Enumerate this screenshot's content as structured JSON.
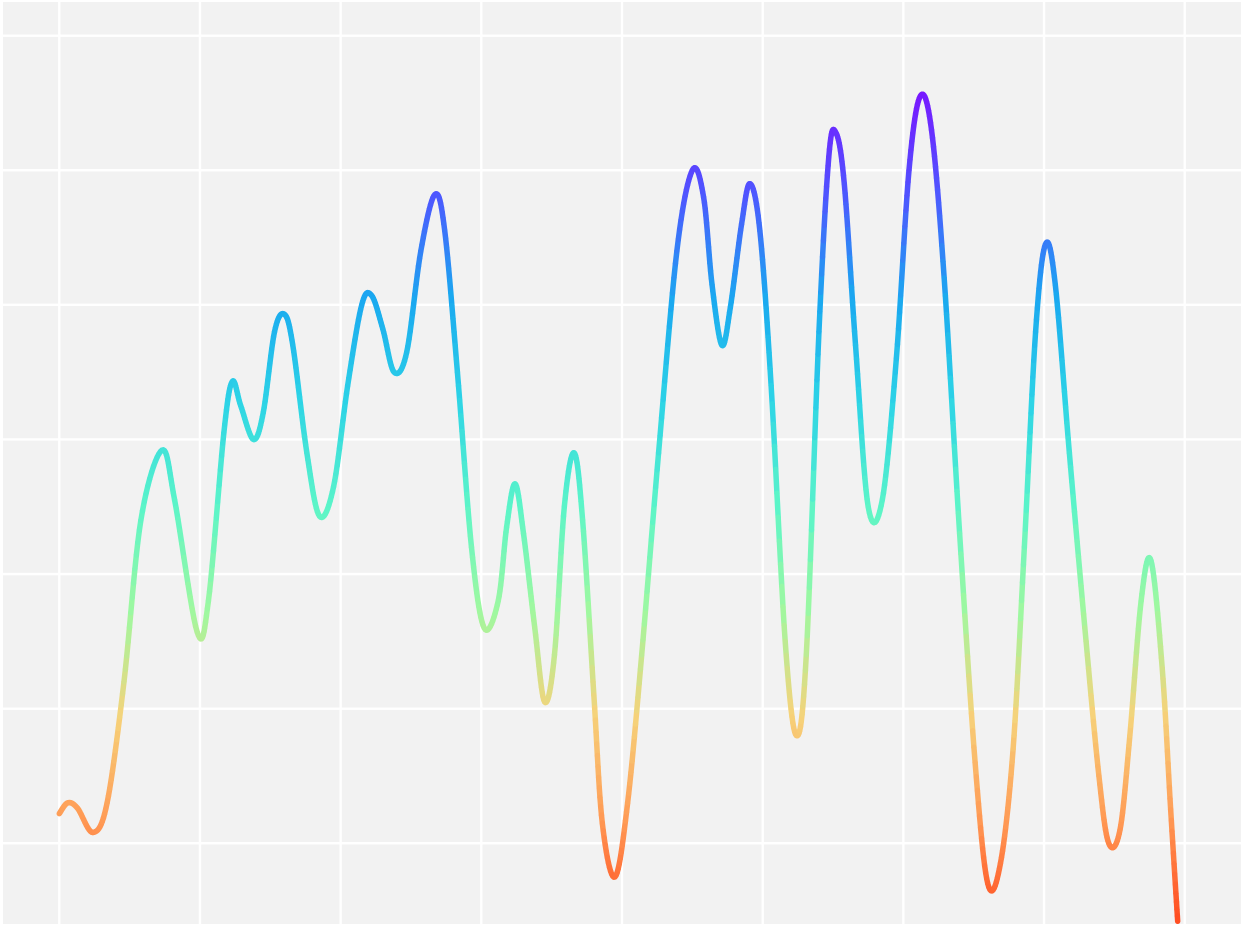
{
  "chart_data": {
    "type": "line",
    "title": "",
    "xlabel": "",
    "ylabel": "",
    "grid": true,
    "legend": "none",
    "background_color": "#f2f2f2",
    "grid_color": "#ffffff",
    "color_scale": [
      "#ff4a1f",
      "#ff9a55",
      "#f6d27a",
      "#9ff8a0",
      "#5cf5c8",
      "#2dd4e6",
      "#1aa8f0",
      "#4f55ff",
      "#7a15ff"
    ],
    "xlim": [
      -0.4,
      8.4
    ],
    "ylim": [
      -0.6,
      6.25
    ],
    "x_gridlines": [
      0,
      1,
      2,
      3,
      4,
      5,
      6,
      7,
      8
    ],
    "y_gridlines": [
      0,
      1,
      2,
      3,
      4,
      5,
      6
    ],
    "series": [
      {
        "points": [
          [
            0.0,
            0.22
          ],
          [
            0.06,
            0.3
          ],
          [
            0.13,
            0.26
          ],
          [
            0.24,
            0.08
          ],
          [
            0.34,
            0.3
          ],
          [
            0.46,
            1.2
          ],
          [
            0.58,
            2.4
          ],
          [
            0.73,
            2.92
          ],
          [
            0.82,
            2.55
          ],
          [
            0.98,
            1.57
          ],
          [
            1.06,
            1.8
          ],
          [
            1.17,
            3.05
          ],
          [
            1.23,
            3.43
          ],
          [
            1.29,
            3.25
          ],
          [
            1.38,
            3.0
          ],
          [
            1.45,
            3.2
          ],
          [
            1.53,
            3.8
          ],
          [
            1.6,
            3.93
          ],
          [
            1.66,
            3.7
          ],
          [
            1.76,
            2.9
          ],
          [
            1.85,
            2.43
          ],
          [
            1.95,
            2.65
          ],
          [
            2.05,
            3.4
          ],
          [
            2.15,
            4.0
          ],
          [
            2.22,
            4.07
          ],
          [
            2.3,
            3.82
          ],
          [
            2.38,
            3.5
          ],
          [
            2.47,
            3.65
          ],
          [
            2.57,
            4.4
          ],
          [
            2.67,
            4.82
          ],
          [
            2.74,
            4.55
          ],
          [
            2.83,
            3.5
          ],
          [
            2.93,
            2.2
          ],
          [
            3.02,
            1.6
          ],
          [
            3.12,
            1.8
          ],
          [
            3.18,
            2.35
          ],
          [
            3.24,
            2.67
          ],
          [
            3.3,
            2.3
          ],
          [
            3.38,
            1.6
          ],
          [
            3.45,
            1.05
          ],
          [
            3.52,
            1.4
          ],
          [
            3.59,
            2.5
          ],
          [
            3.66,
            2.9
          ],
          [
            3.72,
            2.4
          ],
          [
            3.8,
            1.1
          ],
          [
            3.86,
            0.15
          ],
          [
            3.95,
            -0.25
          ],
          [
            4.04,
            0.3
          ],
          [
            4.14,
            1.4
          ],
          [
            4.26,
            2.9
          ],
          [
            4.39,
            4.4
          ],
          [
            4.5,
            5.0
          ],
          [
            4.58,
            4.8
          ],
          [
            4.64,
            4.15
          ],
          [
            4.71,
            3.7
          ],
          [
            4.77,
            3.98
          ],
          [
            4.85,
            4.6
          ],
          [
            4.91,
            4.9
          ],
          [
            4.98,
            4.55
          ],
          [
            5.06,
            3.4
          ],
          [
            5.16,
            1.5
          ],
          [
            5.24,
            0.8
          ],
          [
            5.31,
            1.4
          ],
          [
            5.4,
            3.8
          ],
          [
            5.47,
            5.1
          ],
          [
            5.52,
            5.28
          ],
          [
            5.58,
            4.9
          ],
          [
            5.66,
            3.7
          ],
          [
            5.75,
            2.5
          ],
          [
            5.85,
            2.55
          ],
          [
            5.95,
            3.6
          ],
          [
            6.04,
            5.0
          ],
          [
            6.12,
            5.55
          ],
          [
            6.2,
            5.3
          ],
          [
            6.29,
            4.2
          ],
          [
            6.4,
            2.3
          ],
          [
            6.51,
            0.6
          ],
          [
            6.6,
            -0.3
          ],
          [
            6.69,
            -0.15
          ],
          [
            6.78,
            0.7
          ],
          [
            6.86,
            2.2
          ],
          [
            6.94,
            3.8
          ],
          [
            7.01,
            4.45
          ],
          [
            7.08,
            4.15
          ],
          [
            7.18,
            2.9
          ],
          [
            7.29,
            1.6
          ],
          [
            7.39,
            0.5
          ],
          [
            7.46,
            0.0
          ],
          [
            7.54,
            0.1
          ],
          [
            7.61,
            0.8
          ],
          [
            7.69,
            1.8
          ],
          [
            7.76,
            2.1
          ],
          [
            7.84,
            1.3
          ],
          [
            7.9,
            0.25
          ],
          [
            7.95,
            -0.58
          ]
        ]
      }
    ]
  }
}
